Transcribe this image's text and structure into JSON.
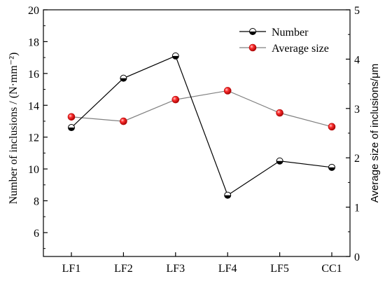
{
  "chart_data": {
    "type": "line",
    "categories": [
      "LF1",
      "LF2",
      "LF3",
      "LF4",
      "LF5",
      "CC1"
    ],
    "series": [
      {
        "name": "Number",
        "axis": "left",
        "values": [
          12.6,
          15.7,
          17.1,
          8.35,
          10.5,
          10.1
        ],
        "color": "#000000",
        "marker": "half-filled-circle"
      },
      {
        "name": "Average size",
        "axis": "right",
        "values": [
          2.83,
          2.74,
          3.18,
          3.36,
          2.91,
          2.63
        ],
        "color": "#ff2020",
        "line_color": "#808080",
        "marker": "red-sphere"
      }
    ],
    "ylabel": "Number of inclusions / (N·mm⁻²)",
    "ylabel_right": "Average size of inclusions/μm",
    "ylim": [
      4.5,
      20
    ],
    "ylim_right": [
      0,
      5
    ],
    "yticks": [
      "6",
      "8",
      "10",
      "12",
      "14",
      "16",
      "18",
      "20"
    ],
    "yticks_right": [
      "0",
      "1",
      "2",
      "3",
      "4",
      "5"
    ],
    "legend_position": "top-right",
    "grid": false
  }
}
